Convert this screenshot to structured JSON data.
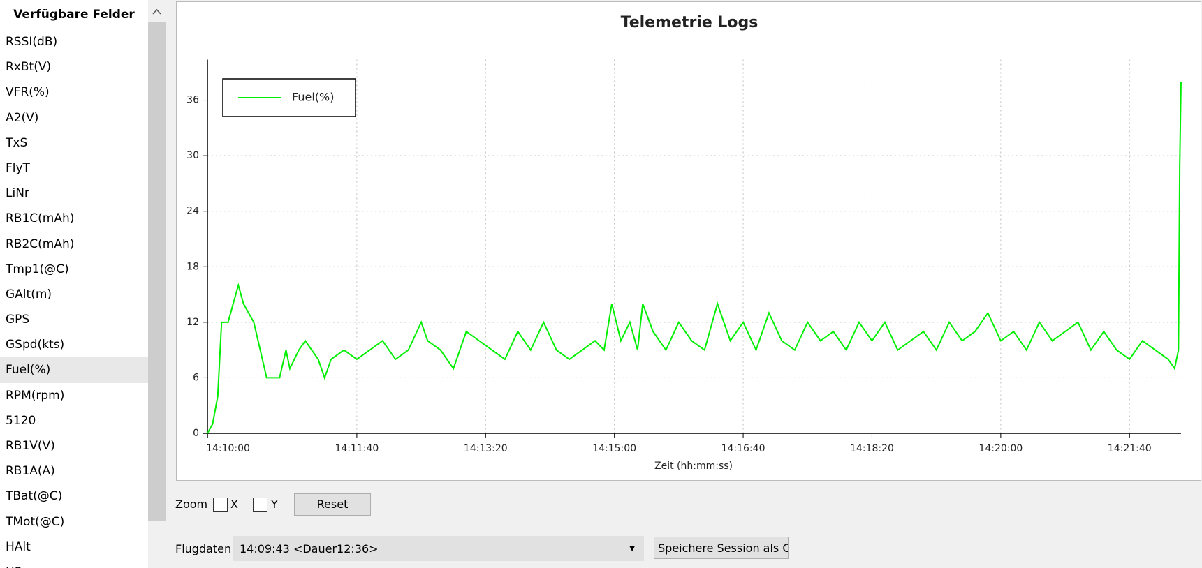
{
  "sidebar": {
    "title": "Verfügbare Felder",
    "items": [
      "RSSI(dB)",
      "RxBt(V)",
      "VFR(%)",
      "A2(V)",
      "TxS",
      "FlyT",
      "LiNr",
      "RB1C(mAh)",
      "RB2C(mAh)",
      "Tmp1(@C)",
      "GAlt(m)",
      "GPS",
      "GSpd(kts)",
      "Fuel(%)",
      "RPM(rpm)",
      "5120",
      "RB1V(V)",
      "RB1A(A)",
      "TBat(@C)",
      "TMot(@C)",
      "HAlt",
      "HPos"
    ],
    "selected": 13
  },
  "chart_data": {
    "type": "line",
    "title": "Telemetrie Logs",
    "x_label": "Zeit (hh:mm:ss)",
    "x": [
      "14:09:44",
      "14:09:48",
      "14:09:52",
      "14:09:55",
      "14:10:00",
      "14:10:04",
      "14:10:08",
      "14:10:12",
      "14:10:16",
      "14:10:20",
      "14:10:25",
      "14:10:30",
      "14:10:40",
      "14:10:45",
      "14:10:48",
      "14:10:55",
      "14:11:00",
      "14:11:05",
      "14:11:10",
      "14:11:15",
      "14:11:20",
      "14:11:30",
      "14:11:40",
      "14:11:50",
      "14:12:00",
      "14:12:10",
      "14:12:20",
      "14:12:30",
      "14:12:35",
      "14:12:45",
      "14:12:55",
      "14:13:05",
      "14:13:15",
      "14:13:25",
      "14:13:35",
      "14:13:45",
      "14:13:55",
      "14:14:05",
      "14:14:15",
      "14:14:25",
      "14:14:35",
      "14:14:45",
      "14:14:52",
      "14:14:58",
      "14:15:05",
      "14:15:12",
      "14:15:18",
      "14:15:22",
      "14:15:30",
      "14:15:40",
      "14:15:50",
      "14:16:00",
      "14:16:10",
      "14:16:20",
      "14:16:30",
      "14:16:40",
      "14:16:50",
      "14:17:00",
      "14:17:10",
      "14:17:20",
      "14:17:30",
      "14:17:40",
      "14:17:50",
      "14:18:00",
      "14:18:10",
      "14:18:20",
      "14:18:30",
      "14:18:40",
      "14:18:50",
      "14:19:00",
      "14:19:10",
      "14:19:20",
      "14:19:30",
      "14:19:40",
      "14:19:50",
      "14:20:00",
      "14:20:10",
      "14:20:20",
      "14:20:30",
      "14:20:40",
      "14:20:50",
      "14:21:00",
      "14:21:10",
      "14:21:20",
      "14:21:30",
      "14:21:40",
      "14:21:50",
      "14:22:00",
      "14:22:10",
      "14:22:15",
      "14:22:18",
      "14:22:19",
      "14:22:20"
    ],
    "series": [
      {
        "name": "Fuel(%)",
        "color": "#00ee00",
        "values": [
          0,
          1,
          4,
          12,
          12,
          14,
          16,
          14,
          13,
          12,
          9,
          6,
          6,
          9,
          7,
          9,
          10,
          9,
          8,
          6,
          8,
          9,
          8,
          9,
          10,
          8,
          9,
          12,
          10,
          9,
          7,
          11,
          10,
          9,
          8,
          11,
          9,
          12,
          9,
          8,
          9,
          10,
          9,
          14,
          10,
          12,
          9,
          14,
          11,
          9,
          12,
          10,
          9,
          14,
          10,
          12,
          9,
          13,
          10,
          9,
          12,
          10,
          11,
          9,
          12,
          10,
          12,
          9,
          10,
          11,
          9,
          12,
          10,
          11,
          13,
          10,
          11,
          9,
          12,
          10,
          11,
          12,
          9,
          11,
          9,
          8,
          10,
          9,
          8,
          7,
          9,
          29,
          38
        ]
      }
    ],
    "xlim": [
      "14:09:44",
      "14:22:20"
    ],
    "xticks": [
      "14:10:00",
      "14:11:40",
      "14:13:20",
      "14:15:00",
      "14:16:40",
      "14:18:20",
      "14:20:00",
      "14:21:40"
    ],
    "ylim": [
      0,
      40
    ],
    "yticks": [
      0,
      6,
      12,
      18,
      24,
      30,
      36
    ],
    "grid": true,
    "legend": "top-left"
  },
  "controls": {
    "zoom_label": "Zoom",
    "zoom_x": "X",
    "zoom_y": "Y",
    "reset": "Reset",
    "flight_label": "Flugdaten",
    "flight_value": "14:09:43 <Dauer12:36>",
    "save": "Speichere Session als CSV"
  }
}
